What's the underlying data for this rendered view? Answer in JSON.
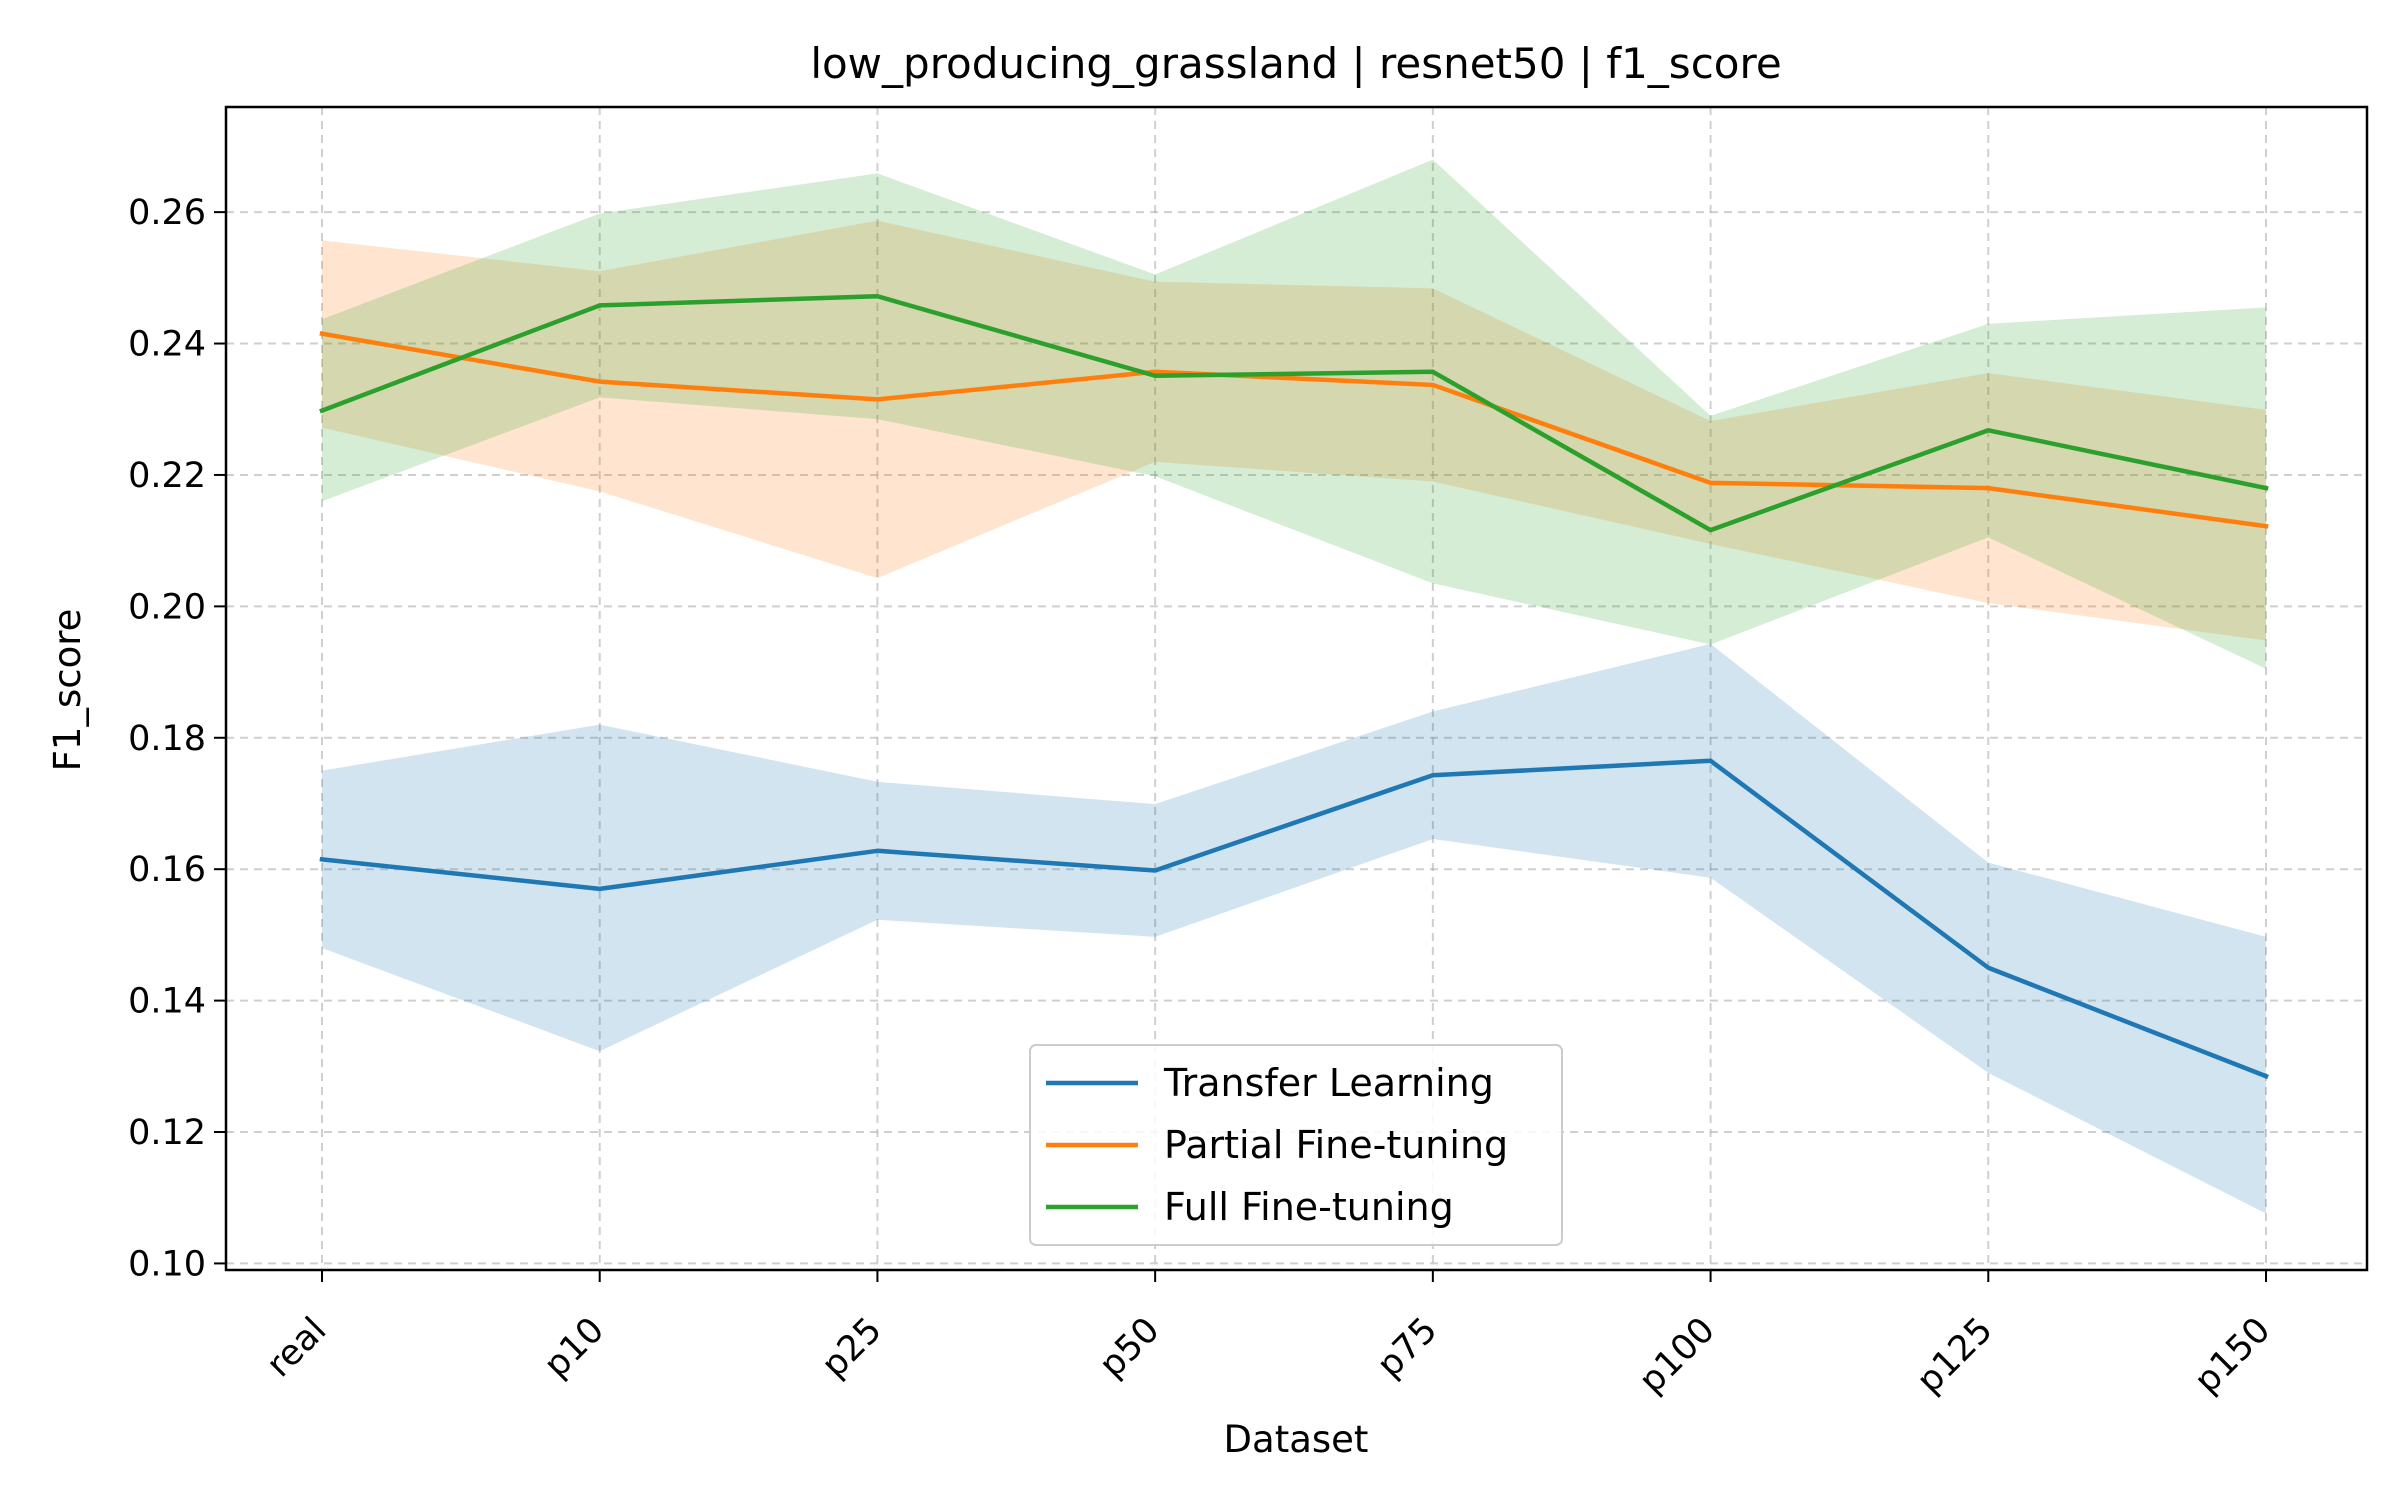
{
  "chart_data": {
    "type": "line",
    "title": "low_producing_grassland | resnet50 | f1_score",
    "xlabel": "Dataset",
    "ylabel": "F1_score",
    "categories": [
      "real",
      "p10",
      "p25",
      "p50",
      "p75",
      "p100",
      "p125",
      "p150"
    ],
    "ylim": [
      0.099,
      0.276
    ],
    "yticks": [
      0.1,
      0.12,
      0.14,
      0.16,
      0.18,
      0.2,
      0.22,
      0.24,
      0.26
    ],
    "ytick_labels": [
      "0.10",
      "0.12",
      "0.14",
      "0.16",
      "0.18",
      "0.20",
      "0.22",
      "0.24",
      "0.26"
    ],
    "grid": true,
    "legend_position": "lower-center",
    "series": [
      {
        "name": "Transfer Learning",
        "color": "#1f77b4",
        "values": [
          0.1615,
          0.157,
          0.1628,
          0.1598,
          0.1743,
          0.1765,
          0.145,
          0.1285
        ],
        "lower": [
          0.148,
          0.1323,
          0.1523,
          0.1497,
          0.1646,
          0.1587,
          0.129,
          0.1076
        ],
        "upper": [
          0.175,
          0.182,
          0.1733,
          0.1699,
          0.184,
          0.1943,
          0.161,
          0.1497
        ]
      },
      {
        "name": "Partial Fine-tuning",
        "color": "#ff7f0e",
        "values": [
          0.2415,
          0.2342,
          0.2315,
          0.2357,
          0.2337,
          0.2188,
          0.218,
          0.2122
        ],
        "lower": [
          0.2272,
          0.2175,
          0.2043,
          0.222,
          0.219,
          0.2095,
          0.2005,
          0.1948
        ],
        "upper": [
          0.2557,
          0.251,
          0.2587,
          0.2494,
          0.2484,
          0.2282,
          0.2355,
          0.2299
        ]
      },
      {
        "name": "Full Fine-tuning",
        "color": "#2ca02c",
        "values": [
          0.2298,
          0.2458,
          0.2472,
          0.2351,
          0.2357,
          0.2116,
          0.2268,
          0.218
        ],
        "lower": [
          0.216,
          0.2318,
          0.2285,
          0.2198,
          0.2035,
          0.1942,
          0.2105,
          0.1905
        ],
        "upper": [
          0.2437,
          0.2598,
          0.2659,
          0.2505,
          0.268,
          0.229,
          0.243,
          0.2455
        ]
      }
    ]
  }
}
